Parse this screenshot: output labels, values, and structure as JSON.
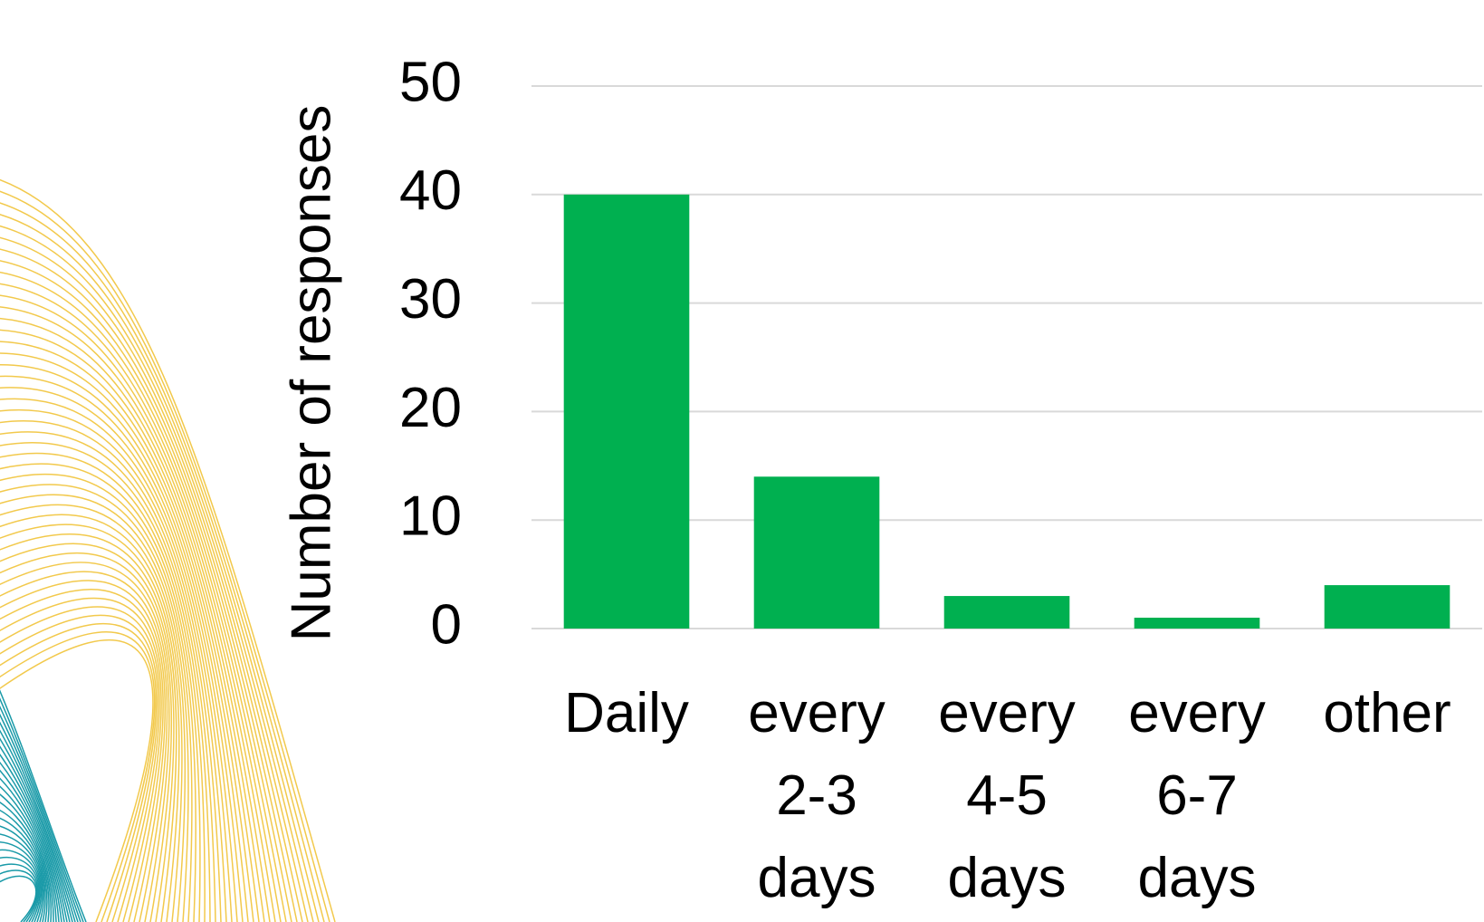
{
  "chart_data": {
    "type": "bar",
    "y_label": "Number of responses",
    "categories": [
      "Daily",
      "every 2-3 days",
      "every 4-5 days",
      "every 6-7 days",
      "other"
    ],
    "values": [
      40,
      14,
      3,
      1,
      4
    ],
    "color": "#00b050",
    "ylim": [
      0,
      50
    ],
    "yticks": [
      0,
      10,
      20,
      30,
      40,
      50
    ],
    "grid": true
  }
}
